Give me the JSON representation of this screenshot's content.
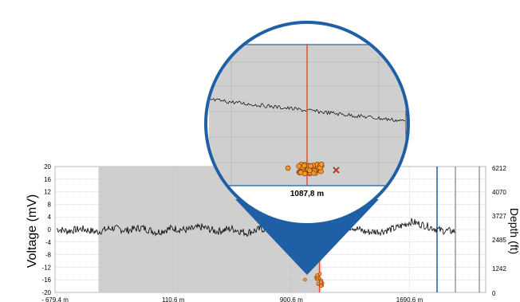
{
  "chart_data": {
    "type": "line",
    "ylabel": "Voltage (mV)",
    "ylim": [
      -20,
      20
    ],
    "y_ticks": [
      "20",
      "16",
      "12",
      "8",
      "4",
      "0",
      "-4",
      "-8",
      "-12",
      "-16",
      "-20"
    ],
    "x_ticks": [
      "- 679.4 m",
      "110.6 m",
      "900.6 m",
      "1690.6 m"
    ],
    "xlim": [
      -679.4,
      2200
    ],
    "right_ticks": [
      "6212",
      "4070",
      "3727",
      "2485",
      "1242",
      "0"
    ],
    "right_label": "Depth (ft)",
    "highlight_range": [
      -389,
      1100
    ],
    "cursor_x": 1087.8,
    "series": [
      {
        "x": [
          -679.4,
          -600,
          -500,
          -400,
          -300,
          -200,
          -100,
          0,
          100,
          200,
          300,
          400,
          500,
          600,
          700,
          800,
          900,
          1000,
          1100,
          1200,
          1300,
          1400,
          1500,
          1600,
          1700,
          1800,
          1900,
          2000
        ],
        "values": [
          0.3,
          -0.5,
          0.2,
          -0.8,
          0.5,
          -0.3,
          0.6,
          -0.9,
          0.4,
          -0.2,
          0.8,
          -0.6,
          0.3,
          -1.1,
          0.2,
          -0.4,
          0.5,
          -0.7,
          0.1,
          -0.5,
          0.9,
          -0.8,
          -0.6,
          0.4,
          2.5,
          1.2,
          -0.3,
          -0.6
        ]
      }
    ]
  },
  "zoom": {
    "cursor_label": "1087,8 m"
  },
  "colors": {
    "cursor": "#e8452c",
    "callout": "#1f5fa6",
    "marker_fill": "#f39a2b",
    "marker_stroke": "#8b3a0e"
  }
}
